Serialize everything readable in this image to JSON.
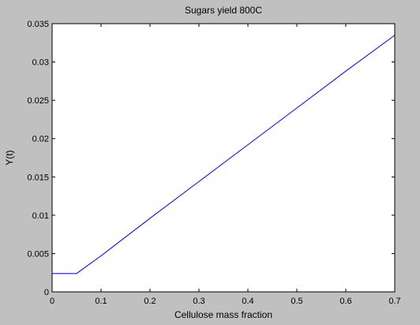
{
  "colors": {
    "figure_background": "#c0c0c0",
    "axes_background": "#ffffff",
    "line": "#0000ff"
  },
  "chart_data": {
    "type": "line",
    "title": "Sugars yield 800C",
    "xlabel": "Cellulose mass fraction",
    "ylabel": "Y(t)",
    "xlim": [
      0,
      0.7
    ],
    "ylim": [
      0,
      0.035
    ],
    "grid": false,
    "xticks": [
      0,
      0.1,
      0.2,
      0.3,
      0.4,
      0.5,
      0.6,
      0.7
    ],
    "xtick_labels": [
      "0",
      "0.1",
      "0.2",
      "0.3",
      "0.4",
      "0.5",
      "0.6",
      "0.7"
    ],
    "yticks": [
      0,
      0.005,
      0.01,
      0.015,
      0.02,
      0.025,
      0.03,
      0.035
    ],
    "ytick_labels": [
      "0",
      "0.005",
      "0.01",
      "0.015",
      "0.02",
      "0.025",
      "0.03",
      "0.035"
    ],
    "series": [
      {
        "x": [
          0,
          0.05,
          0.1,
          0.2,
          0.3,
          0.4,
          0.5,
          0.6,
          0.7
        ],
        "y": [
          0.0024,
          0.0024,
          0.0047,
          0.0096,
          0.0144,
          0.0192,
          0.024,
          0.0288,
          0.0335
        ]
      }
    ]
  }
}
